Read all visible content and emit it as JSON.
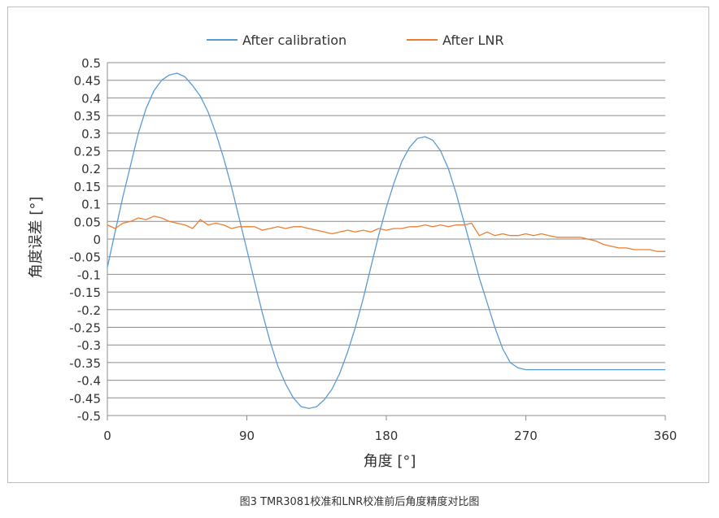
{
  "chart_data": {
    "type": "line",
    "title": "",
    "xlabel": "角度 [°]",
    "ylabel": "角度误差 [°]",
    "xlim": [
      0,
      360
    ],
    "ylim": [
      -0.5,
      0.5
    ],
    "x_ticks": [
      0,
      90,
      180,
      270,
      360
    ],
    "y_ticks": [
      0.5,
      0.45,
      0.4,
      0.35,
      0.3,
      0.25,
      0.2,
      0.15,
      0.1,
      0.05,
      0,
      -0.05,
      -0.1,
      -0.15,
      -0.2,
      -0.25,
      -0.3,
      -0.35,
      -0.4,
      -0.45,
      -0.5
    ],
    "y_tick_labels": [
      "0.5",
      "0.45",
      "0.4",
      "0.35",
      "0.3",
      "0.25",
      "0.2",
      "0.15",
      "0.1",
      "0.05",
      "0",
      "-0.05",
      "-0.1",
      "-0.15",
      "-0.2",
      "-0.25",
      "-0.3",
      "-0.35",
      "-0.4",
      "-0.45",
      "-0.5"
    ],
    "grid": true,
    "legend_position": "top",
    "series": [
      {
        "name": "After  calibration",
        "color": "#5b9bd5",
        "x": [
          0,
          5,
          10,
          15,
          20,
          25,
          30,
          35,
          40,
          45,
          50,
          55,
          60,
          65,
          70,
          75,
          80,
          85,
          90,
          95,
          100,
          105,
          110,
          115,
          120,
          125,
          130,
          135,
          140,
          145,
          150,
          155,
          160,
          165,
          170,
          175,
          180,
          185,
          190,
          195,
          200,
          205,
          210,
          215,
          220,
          225,
          230,
          235,
          240,
          245,
          250,
          255,
          260,
          265,
          270,
          275,
          280,
          285,
          290,
          295,
          300,
          305,
          310,
          315,
          320,
          325,
          330,
          335,
          340,
          345,
          350,
          355,
          360
        ],
        "y": [
          -0.08,
          0.02,
          0.12,
          0.21,
          0.3,
          0.37,
          0.42,
          0.45,
          0.465,
          0.47,
          0.46,
          0.435,
          0.405,
          0.36,
          0.3,
          0.23,
          0.15,
          0.06,
          -0.03,
          -0.12,
          -0.21,
          -0.29,
          -0.36,
          -0.41,
          -0.45,
          -0.475,
          -0.48,
          -0.475,
          -0.455,
          -0.425,
          -0.38,
          -0.32,
          -0.25,
          -0.17,
          -0.08,
          0.01,
          0.09,
          0.16,
          0.22,
          0.26,
          0.285,
          0.29,
          0.28,
          0.25,
          0.2,
          0.13,
          0.05,
          -0.03,
          -0.11,
          -0.18,
          -0.25,
          -0.31,
          -0.35,
          -0.365,
          -0.37,
          -0.37,
          -0.37,
          -0.37,
          -0.37,
          -0.37,
          -0.37,
          -0.37,
          -0.37,
          -0.37,
          -0.37,
          -0.37,
          -0.37,
          -0.37,
          -0.37,
          -0.37,
          -0.37,
          -0.37,
          -0.37
        ]
      },
      {
        "name": "After LNR",
        "color": "#ed7d31",
        "x": [
          0,
          5,
          10,
          15,
          20,
          25,
          30,
          35,
          40,
          45,
          50,
          55,
          60,
          65,
          70,
          75,
          80,
          85,
          90,
          95,
          100,
          105,
          110,
          115,
          120,
          125,
          130,
          135,
          140,
          145,
          150,
          155,
          160,
          165,
          170,
          175,
          180,
          185,
          190,
          195,
          200,
          205,
          210,
          215,
          220,
          225,
          230,
          235,
          240,
          245,
          250,
          255,
          260,
          265,
          270,
          275,
          280,
          285,
          290,
          295,
          300,
          305,
          310,
          315,
          320,
          325,
          330,
          335,
          340,
          345,
          350,
          355,
          360
        ],
        "y": [
          0.04,
          0.03,
          0.045,
          0.05,
          0.06,
          0.055,
          0.065,
          0.06,
          0.05,
          0.045,
          0.04,
          0.03,
          0.055,
          0.04,
          0.045,
          0.04,
          0.03,
          0.035,
          0.035,
          0.035,
          0.025,
          0.03,
          0.035,
          0.03,
          0.035,
          0.035,
          0.03,
          0.025,
          0.02,
          0.015,
          0.02,
          0.025,
          0.02,
          0.025,
          0.02,
          0.03,
          0.025,
          0.03,
          0.03,
          0.035,
          0.035,
          0.04,
          0.035,
          0.04,
          0.035,
          0.04,
          0.04,
          0.045,
          0.01,
          0.02,
          0.01,
          0.015,
          0.01,
          0.01,
          0.015,
          0.01,
          0.015,
          0.01,
          0.005,
          0.005,
          0.005,
          0.005,
          0.0,
          -0.005,
          -0.015,
          -0.02,
          -0.025,
          -0.025,
          -0.03,
          -0.03,
          -0.03,
          -0.035,
          -0.035
        ]
      }
    ]
  },
  "caption": "图3 TMR3081校准和LNR校准前后角度精度对比图"
}
